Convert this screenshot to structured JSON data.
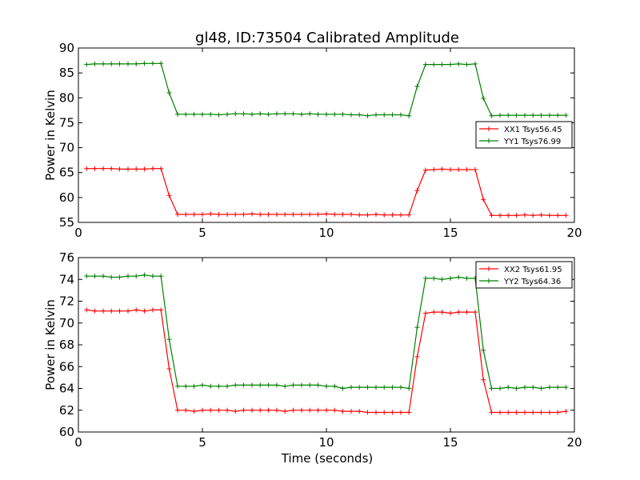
{
  "chart_data": {
    "title": "gl48, ID:73504 Calibrated Amplitude",
    "xlabel": "Time (seconds)",
    "colors": {
      "red": "#ff0000",
      "green": "#008000"
    },
    "time": [
      0.33,
      0.66,
      1.0,
      1.33,
      1.66,
      2.0,
      2.33,
      2.66,
      3.0,
      3.33,
      3.66,
      4.0,
      4.33,
      4.66,
      5.0,
      5.33,
      5.66,
      6.0,
      6.33,
      6.66,
      7.0,
      7.33,
      7.66,
      8.0,
      8.33,
      8.66,
      9.0,
      9.33,
      9.66,
      10.0,
      10.33,
      10.66,
      11.0,
      11.33,
      11.66,
      12.0,
      12.33,
      12.66,
      13.0,
      13.33,
      13.66,
      14.0,
      14.33,
      14.66,
      15.0,
      15.33,
      15.66,
      16.0,
      16.33,
      16.66,
      17.0,
      17.33,
      17.66,
      18.0,
      18.33,
      18.66,
      19.0,
      19.33,
      19.66
    ],
    "panels": [
      {
        "type": "line",
        "ylabel": "Power in Kelvin",
        "xlim": [
          0,
          20
        ],
        "ylim": [
          55,
          90
        ],
        "xticks": [
          0,
          5,
          10,
          15,
          20
        ],
        "yticks": [
          55,
          60,
          65,
          70,
          75,
          80,
          85,
          90
        ],
        "legend_position": "center-right",
        "series": [
          {
            "name": "XX1 Tsys56.45",
            "color": "#ff0000",
            "values": [
              65.8,
              65.8,
              65.8,
              65.8,
              65.7,
              65.7,
              65.7,
              65.7,
              65.8,
              65.8,
              60.4,
              56.6,
              56.6,
              56.6,
              56.6,
              56.7,
              56.6,
              56.6,
              56.6,
              56.6,
              56.7,
              56.6,
              56.6,
              56.6,
              56.6,
              56.6,
              56.6,
              56.6,
              56.6,
              56.7,
              56.6,
              56.6,
              56.6,
              56.5,
              56.5,
              56.6,
              56.5,
              56.5,
              56.5,
              56.5,
              61.4,
              65.5,
              65.6,
              65.7,
              65.6,
              65.6,
              65.6,
              65.6,
              59.6,
              56.4,
              56.4,
              56.4,
              56.4,
              56.5,
              56.4,
              56.5,
              56.4,
              56.4,
              56.4
            ]
          },
          {
            "name": "YY1 Tsys76.99",
            "color": "#008000",
            "values": [
              86.7,
              86.8,
              86.8,
              86.8,
              86.8,
              86.8,
              86.8,
              86.9,
              86.9,
              86.9,
              81.0,
              76.7,
              76.7,
              76.7,
              76.7,
              76.7,
              76.6,
              76.7,
              76.8,
              76.8,
              76.7,
              76.8,
              76.7,
              76.8,
              76.8,
              76.8,
              76.7,
              76.8,
              76.7,
              76.7,
              76.7,
              76.7,
              76.6,
              76.6,
              76.4,
              76.6,
              76.6,
              76.6,
              76.6,
              76.4,
              82.3,
              86.7,
              86.7,
              86.7,
              86.7,
              86.8,
              86.7,
              86.8,
              79.9,
              76.4,
              76.5,
              76.5,
              76.5,
              76.5,
              76.5,
              76.5,
              76.5,
              76.5,
              76.5
            ]
          }
        ]
      },
      {
        "type": "line",
        "ylabel": "Power in Kelvin",
        "xlabel": "Time (seconds)",
        "xlim": [
          0,
          20
        ],
        "ylim": [
          60,
          76
        ],
        "xticks": [
          0,
          5,
          10,
          15,
          20
        ],
        "yticks": [
          60,
          62,
          64,
          66,
          68,
          70,
          72,
          74,
          76
        ],
        "legend_position": "upper-right",
        "series": [
          {
            "name": "XX2 Tsys61.95",
            "color": "#ff0000",
            "values": [
              71.2,
              71.1,
              71.1,
              71.1,
              71.1,
              71.1,
              71.2,
              71.1,
              71.2,
              71.2,
              65.8,
              62.0,
              62.0,
              61.9,
              62.0,
              62.0,
              62.0,
              62.0,
              61.9,
              62.0,
              62.0,
              62.0,
              62.0,
              62.0,
              61.9,
              62.0,
              62.0,
              62.0,
              62.0,
              62.0,
              62.0,
              61.9,
              61.9,
              61.9,
              61.8,
              61.8,
              61.8,
              61.8,
              61.8,
              61.8,
              66.9,
              70.9,
              71.0,
              71.0,
              70.9,
              71.0,
              71.0,
              71.0,
              64.8,
              61.8,
              61.8,
              61.8,
              61.8,
              61.8,
              61.8,
              61.8,
              61.8,
              61.8,
              61.9
            ]
          },
          {
            "name": "YY2 Tsys64.36",
            "color": "#008000",
            "values": [
              74.3,
              74.3,
              74.3,
              74.2,
              74.2,
              74.3,
              74.3,
              74.4,
              74.3,
              74.3,
              68.5,
              64.2,
              64.2,
              64.2,
              64.3,
              64.2,
              64.2,
              64.2,
              64.3,
              64.3,
              64.3,
              64.3,
              64.3,
              64.3,
              64.2,
              64.3,
              64.3,
              64.3,
              64.3,
              64.2,
              64.2,
              64.0,
              64.1,
              64.1,
              64.1,
              64.1,
              64.1,
              64.1,
              64.1,
              64.0,
              69.6,
              74.1,
              74.1,
              74.0,
              74.1,
              74.2,
              74.1,
              74.1,
              67.5,
              64.0,
              64.0,
              64.1,
              64.0,
              64.1,
              64.1,
              64.0,
              64.1,
              64.1,
              64.1
            ]
          }
        ]
      }
    ]
  }
}
